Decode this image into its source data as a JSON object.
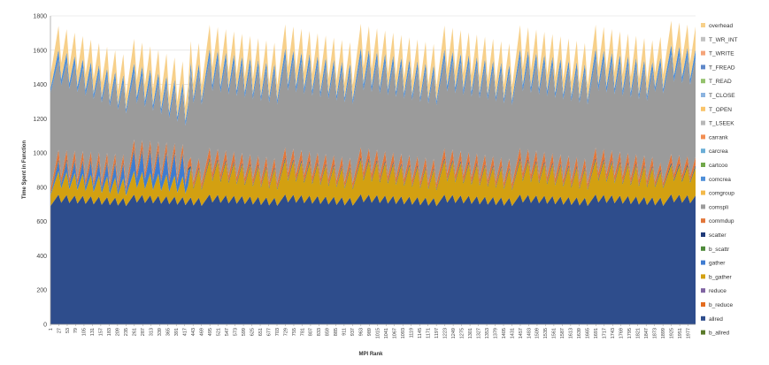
{
  "chart_data": {
    "type": "area",
    "stacked": true,
    "title": "",
    "xlabel": "MPI Rank",
    "ylabel": "Time Spent in Function",
    "ylim": [
      0,
      1800
    ],
    "yticks": [
      0,
      200,
      400,
      600,
      800,
      1000,
      1200,
      1400,
      1600,
      1800
    ],
    "xlim": [
      1,
      2000
    ],
    "xtick_labels": [
      "1",
      "27",
      "53",
      "79",
      "105",
      "131",
      "157",
      "183",
      "209",
      "235",
      "261",
      "287",
      "313",
      "339",
      "365",
      "391",
      "417",
      "443",
      "469",
      "495",
      "521",
      "547",
      "573",
      "599",
      "625",
      "651",
      "677",
      "703",
      "729",
      "755",
      "781",
      "807",
      "833",
      "859",
      "885",
      "911",
      "937",
      "963",
      "989",
      "1015",
      "1041",
      "1067",
      "1093",
      "1119",
      "1145",
      "1171",
      "1197",
      "1223",
      "1249",
      "1275",
      "1301",
      "1327",
      "1353",
      "1379",
      "1405",
      "1431",
      "1457",
      "1483",
      "1509",
      "1535",
      "1561",
      "1587",
      "1613",
      "1639",
      "1665",
      "1691",
      "1717",
      "1743",
      "1769",
      "1795",
      "1821",
      "1847",
      "1873",
      "1899",
      "1925",
      "1951",
      "1977"
    ],
    "grid": true,
    "legend_position": "right",
    "legend_order": [
      "overhead",
      "T_WR_INT",
      "T_WRITE",
      "T_FREAD",
      "T_READ",
      "T_CLOSE",
      "T_OPEN",
      "T_LSEEK",
      "carrank",
      "carcrea",
      "cartcoo",
      "comcrea",
      "comgroup",
      "comspli",
      "commdup",
      "scatter",
      "b_scattr",
      "gather",
      "b_gather",
      "reduce",
      "b_reduce",
      "allred",
      "b_allred"
    ],
    "series": [
      {
        "name": "b_allred",
        "color": "#5a7a2a",
        "profile": {
          "default": [
            0,
            0
          ]
        }
      },
      {
        "name": "allred",
        "color": "#2e4d8c",
        "profile": {
          "first": [
            690,
            760
          ],
          "default": [
            690,
            760
          ],
          "last": [
            690,
            760
          ]
        }
      },
      {
        "name": "b_reduce",
        "color": "#e46c1f",
        "profile": {
          "default": [
            0,
            0
          ]
        }
      },
      {
        "name": "reduce",
        "color": "#8064a2",
        "profile": {
          "default": [
            0,
            0
          ]
        }
      },
      {
        "name": "b_gather",
        "color": "#d3a011",
        "profile": {
          "first": [
            60,
            140
          ],
          "default": [
            90,
            200
          ],
          "last": [
            100,
            170
          ]
        }
      },
      {
        "name": "gather",
        "color": "#3f7cd1",
        "profile": {
          "first": [
            50,
            160
          ],
          "default": [
            0,
            0
          ],
          "last": [
            0,
            0
          ]
        }
      },
      {
        "name": "b_scattr",
        "color": "#4e8a3a",
        "profile": {
          "default": [
            3,
            6
          ]
        }
      },
      {
        "name": "scatter",
        "color": "#1f3a78",
        "profile": {
          "default": [
            5,
            10
          ]
        }
      },
      {
        "name": "commdup",
        "color": "#e2773a",
        "profile": {
          "first": [
            30,
            55
          ],
          "default": [
            30,
            60
          ],
          "last": [
            25,
            50
          ]
        }
      },
      {
        "name": "comspli",
        "color": "#9b9b9b",
        "profile": {
          "first": [
            280,
            560
          ],
          "default": [
            460,
            520
          ],
          "last": [
            520,
            580
          ]
        }
      },
      {
        "name": "comgroup",
        "color": "#f3b94a",
        "profile": {
          "default": [
            0,
            0
          ]
        }
      },
      {
        "name": "comcrea",
        "color": "#4f8fd8",
        "profile": {
          "default": [
            25,
            60
          ]
        }
      },
      {
        "name": "cartcoo",
        "color": "#71a84a",
        "profile": {
          "default": [
            0,
            0
          ]
        }
      },
      {
        "name": "carcrea",
        "color": "#6baed6",
        "profile": {
          "default": [
            0,
            0
          ]
        }
      },
      {
        "name": "carrank",
        "color": "#f28e52",
        "profile": {
          "default": [
            0,
            0
          ]
        }
      },
      {
        "name": "T_LSEEK",
        "color": "#b7b7b7",
        "profile": {
          "default": [
            0,
            0
          ]
        }
      },
      {
        "name": "T_OPEN",
        "color": "#f9c46b",
        "profile": {
          "default": [
            0,
            0
          ]
        }
      },
      {
        "name": "T_CLOSE",
        "color": "#8cb4e0",
        "profile": {
          "default": [
            0,
            0
          ]
        }
      },
      {
        "name": "T_READ",
        "color": "#94c26d",
        "profile": {
          "default": [
            0,
            0
          ]
        }
      },
      {
        "name": "T_FREAD",
        "color": "#5e87c9",
        "profile": {
          "default": [
            0,
            0
          ]
        }
      },
      {
        "name": "T_WRITE",
        "color": "#f5a57a",
        "profile": {
          "default": [
            0,
            0
          ]
        }
      },
      {
        "name": "T_WR_INT",
        "color": "#c2c2c2",
        "profile": {
          "default": [
            0,
            0
          ]
        }
      },
      {
        "name": "overhead",
        "color": "#f7d08a",
        "profile": {
          "default": [
            80,
            140
          ]
        }
      }
    ],
    "segments": {
      "first_end": 431,
      "last_start": 1873
    },
    "period": 26
  }
}
